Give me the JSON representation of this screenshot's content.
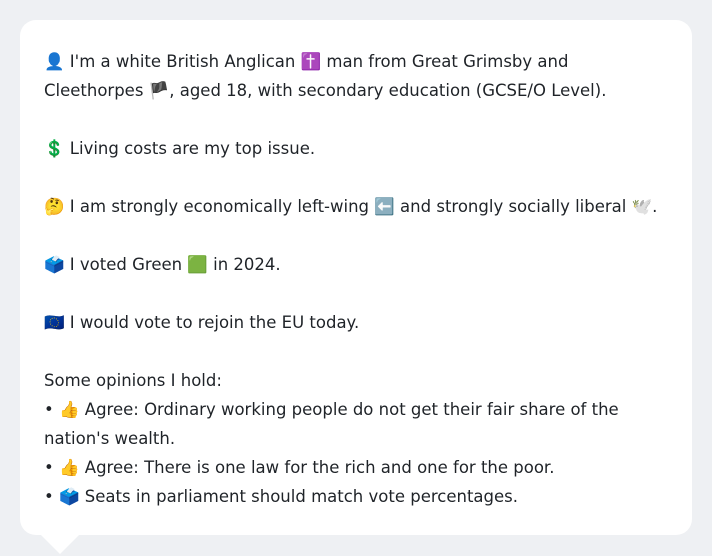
{
  "profile": {
    "identity": {
      "icon": "person-silhouette-icon",
      "emoji": "👤",
      "text_a": "I'm a white British Anglican ",
      "cross_emoji": "✝️",
      "text_b": " man from Great Grimsby and Cleethorpes ",
      "flag_emoji": "🏴",
      "text_c": ", aged 18, with secondary education (GCSE/O Level)."
    },
    "issue": {
      "emoji": "💲",
      "text": "Living costs are my top issue."
    },
    "ideology": {
      "emoji": "🤔",
      "text_a": "I am strongly economically left-wing ",
      "left_emoji": "⬅️",
      "text_b": " and strongly socially liberal ",
      "dove_emoji": "🕊️",
      "text_c": "."
    },
    "vote": {
      "emoji": "🗳️",
      "text_a": "I voted Green ",
      "square_emoji": "🟩",
      "text_b": " in 2024."
    },
    "eu": {
      "emoji": "🇪🇺",
      "text": "I would vote to rejoin the EU today."
    },
    "opinions": {
      "heading": "Some opinions I hold:",
      "bullet": "•",
      "items": [
        {
          "emoji": "👍",
          "text": "Agree: Ordinary working people do not get their fair share of the nation's wealth."
        },
        {
          "emoji": "👍",
          "text": "Agree: There is one law for the rich and one for the poor."
        },
        {
          "emoji": "🗳️",
          "text": "Seats in parliament should match vote percentages."
        }
      ]
    }
  }
}
